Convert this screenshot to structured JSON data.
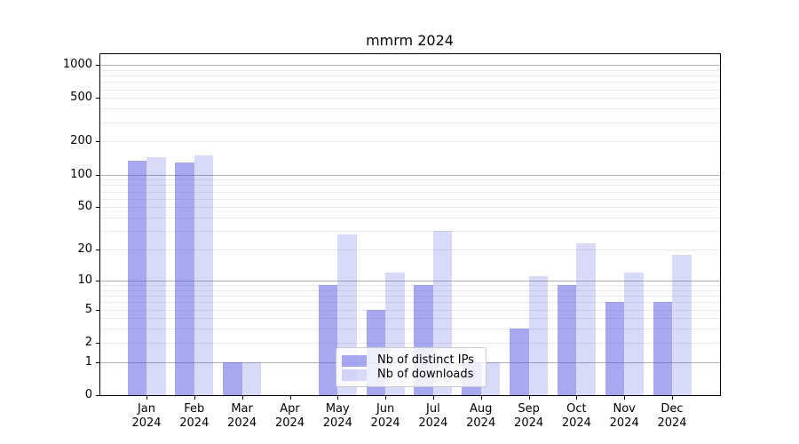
{
  "chart_data": {
    "type": "bar",
    "title": "mmrm 2024",
    "scale": "log1p",
    "grid": "horizontal",
    "categories": [
      "Jan",
      "Feb",
      "Mar",
      "Apr",
      "May",
      "Jun",
      "Jul",
      "Aug",
      "Sep",
      "Oct",
      "Nov",
      "Dec"
    ],
    "category_year": "2024",
    "series": [
      {
        "name": "Nb of distinct IPs",
        "color": "rgba(81,81,225,0.5)",
        "color_on_white": "#a8a8f0",
        "values": [
          133,
          129,
          1,
          0,
          9,
          5,
          9,
          1,
          3,
          9,
          6,
          6
        ]
      },
      {
        "name": "Nb of downloads",
        "color": "rgba(81,81,225,0.22)",
        "color_on_white": "#d9d9fa",
        "values": [
          143,
          150,
          1,
          0,
          28,
          12,
          30,
          1,
          11,
          23,
          12,
          18
        ]
      }
    ],
    "yticks": [
      0,
      1,
      2,
      5,
      10,
      20,
      50,
      100,
      200,
      500,
      1000
    ],
    "ylim": [
      0,
      1250
    ],
    "major_grid_color": "#b0b0b0",
    "minor_grid_color": "#e9e9e9",
    "legend_position": "lower center"
  }
}
